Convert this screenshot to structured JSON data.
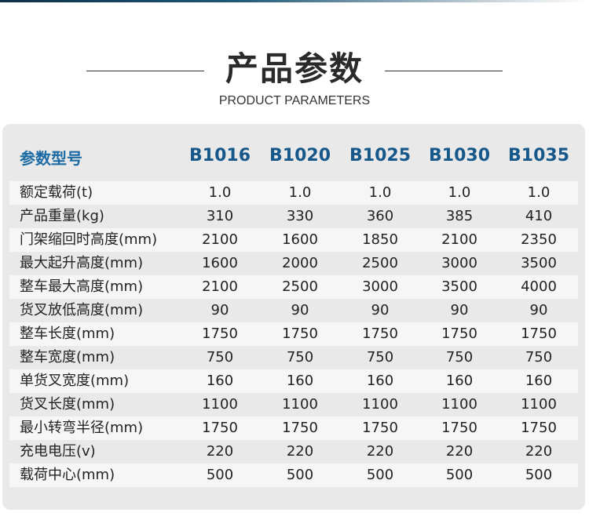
{
  "header": {
    "title": "产品参数",
    "subtitle": "PRODUCT PARAMETERS"
  },
  "colors": {
    "accent": "#16588a",
    "card_bg": "#e9e9e9",
    "stripe": "#f6f6f6"
  },
  "table": {
    "header_label": "参数型号",
    "models": [
      "B1016",
      "B1020",
      "B1025",
      "B1030",
      "B1035"
    ],
    "rows": [
      {
        "label": "额定载荷(t)",
        "values": [
          "1.0",
          "1.0",
          "1.0",
          "1.0",
          "1.0"
        ]
      },
      {
        "label": "产品重量(kg)",
        "values": [
          "310",
          "330",
          "360",
          "385",
          "410"
        ]
      },
      {
        "label": "门架缩回时高度(mm)",
        "values": [
          "2100",
          "1600",
          "1850",
          "2100",
          "2350"
        ]
      },
      {
        "label": "最大起升高度(mm)",
        "values": [
          "1600",
          "2000",
          "2500",
          "3000",
          "3500"
        ]
      },
      {
        "label": "整车最大高度(mm)",
        "values": [
          "2100",
          "2500",
          "3000",
          "3500",
          "4000"
        ]
      },
      {
        "label": "货叉放低高度(mm)",
        "values": [
          "90",
          "90",
          "90",
          "90",
          "90"
        ]
      },
      {
        "label": "整车长度(mm)",
        "values": [
          "1750",
          "1750",
          "1750",
          "1750",
          "1750"
        ]
      },
      {
        "label": "整车宽度(mm)",
        "values": [
          "750",
          "750",
          "750",
          "750",
          "750"
        ]
      },
      {
        "label": "单货叉宽度(mm)",
        "values": [
          "160",
          "160",
          "160",
          "160",
          "160"
        ]
      },
      {
        "label": "货叉长度(mm)",
        "values": [
          "1100",
          "1100",
          "1100",
          "1100",
          "1100"
        ]
      },
      {
        "label": "最小转弯半径(mm)",
        "values": [
          "1750",
          "1750",
          "1750",
          "1750",
          "1750"
        ]
      },
      {
        "label": "充电电压(v)",
        "values": [
          "220",
          "220",
          "220",
          "220",
          "220"
        ]
      },
      {
        "label": "载荷中心(mm)",
        "values": [
          "500",
          "500",
          "500",
          "500",
          "500"
        ]
      }
    ]
  }
}
